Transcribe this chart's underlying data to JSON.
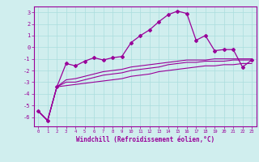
{
  "x": [
    0,
    1,
    2,
    3,
    4,
    5,
    6,
    7,
    8,
    9,
    10,
    11,
    12,
    13,
    14,
    15,
    16,
    17,
    18,
    19,
    20,
    21,
    22,
    23
  ],
  "line1": [
    -5.5,
    -6.3,
    -3.4,
    -1.4,
    -1.6,
    -1.2,
    -0.9,
    -1.1,
    -0.9,
    -0.8,
    0.4,
    1.0,
    1.5,
    2.2,
    2.8,
    3.1,
    2.9,
    0.6,
    1.0,
    -0.3,
    -0.2,
    -0.2,
    -1.7,
    -1.1
  ],
  "line2": [
    -5.5,
    -6.3,
    -3.4,
    -2.8,
    -2.7,
    -2.5,
    -2.3,
    -2.1,
    -2.0,
    -1.9,
    -1.7,
    -1.6,
    -1.5,
    -1.4,
    -1.3,
    -1.2,
    -1.1,
    -1.1,
    -1.1,
    -1.0,
    -1.0,
    -1.0,
    -1.0,
    -1.0
  ],
  "line3": [
    -5.5,
    -6.3,
    -3.4,
    -3.0,
    -3.0,
    -2.8,
    -2.6,
    -2.4,
    -2.3,
    -2.2,
    -2.0,
    -1.9,
    -1.8,
    -1.7,
    -1.5,
    -1.4,
    -1.3,
    -1.3,
    -1.2,
    -1.2,
    -1.2,
    -1.1,
    -1.1,
    -1.1
  ],
  "line4": [
    -5.5,
    -6.3,
    -3.4,
    -3.3,
    -3.2,
    -3.1,
    -3.0,
    -2.9,
    -2.8,
    -2.7,
    -2.5,
    -2.4,
    -2.3,
    -2.1,
    -2.0,
    -1.9,
    -1.8,
    -1.7,
    -1.6,
    -1.6,
    -1.5,
    -1.5,
    -1.4,
    -1.4
  ],
  "bg_color": "#d0eeee",
  "line_color": "#990099",
  "grid_color": "#aadddd",
  "xlabel": "Windchill (Refroidissement éolien,°C)",
  "xlim": [
    -0.5,
    23.5
  ],
  "ylim": [
    -6.8,
    3.5
  ],
  "yticks": [
    -6,
    -5,
    -4,
    -3,
    -2,
    -1,
    0,
    1,
    2,
    3
  ],
  "xticks": [
    0,
    1,
    2,
    3,
    4,
    5,
    6,
    7,
    8,
    9,
    10,
    11,
    12,
    13,
    14,
    15,
    16,
    17,
    18,
    19,
    20,
    21,
    22,
    23
  ]
}
